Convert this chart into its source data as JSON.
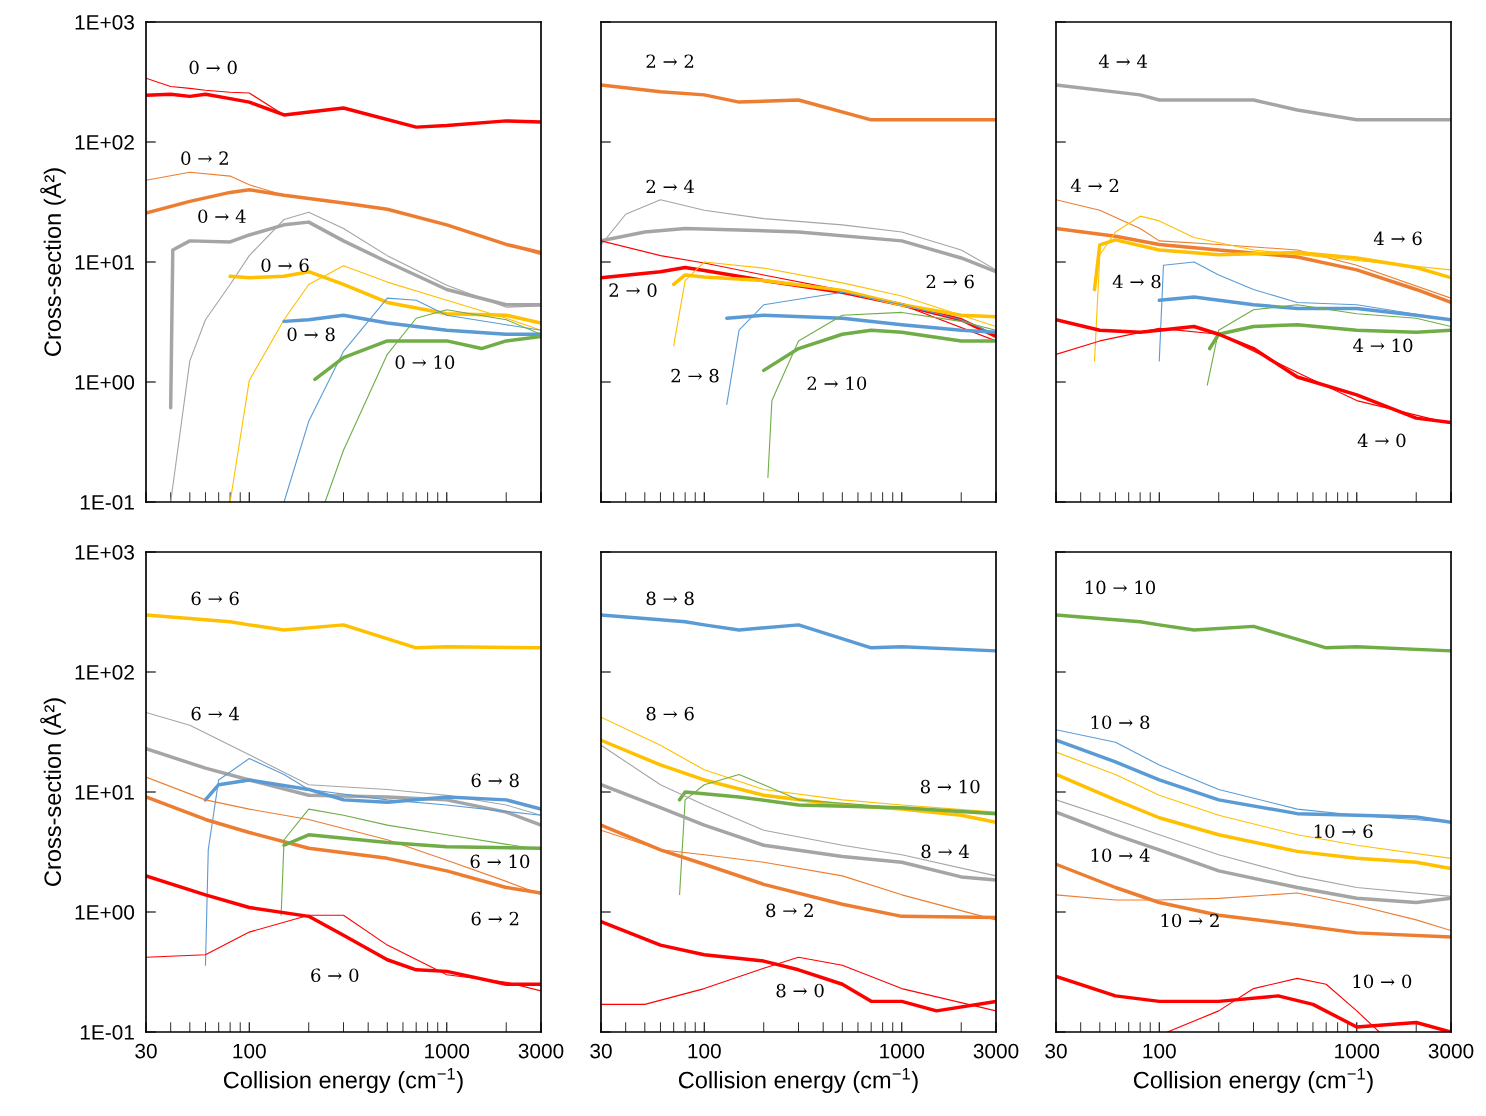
{
  "chart_data": [
    {
      "type": "line",
      "log": "xy",
      "ylabel": "Cross-section (Å²)",
      "tick_labels": "y",
      "xlim": [
        30,
        3000
      ],
      "ylim": [
        0.1,
        1000
      ],
      "xticks": [
        30,
        100,
        1000,
        3000
      ],
      "yticks": [
        {
          "value": 0.1,
          "label": "1E-01"
        },
        {
          "value": 1,
          "label": "1E+00"
        },
        {
          "value": 10,
          "label": "1E+01"
        },
        {
          "value": 100,
          "label": "1E+02"
        },
        {
          "value": 1000,
          "label": "1E+03"
        }
      ],
      "series": [
        {
          "color": "#ff0000",
          "x": [
            30,
            40,
            50,
            60,
            80,
            100,
            150,
            300,
            700,
            1000,
            2000,
            3000
          ],
          "values": [
            245,
            250,
            240,
            250,
            230,
            215,
            168,
            192,
            133,
            137,
            150,
            147
          ]
        },
        {
          "color": "#ff0000",
          "x": [
            30,
            40,
            50,
            60,
            80,
            100,
            150,
            300,
            700,
            1000,
            2000,
            3000
          ],
          "values": [
            340,
            290,
            280,
            270,
            260,
            256,
            168,
            192,
            133,
            137,
            150,
            147
          ]
        },
        {
          "color": "#ed7d31",
          "x": [
            30,
            50,
            80,
            100,
            150,
            300,
            500,
            1000,
            2000,
            3000
          ],
          "values": [
            25.6,
            32,
            38,
            40,
            36,
            31,
            27.5,
            20.4,
            14,
            12
          ]
        },
        {
          "color": "#ed7d31",
          "x": [
            30,
            50,
            80,
            100,
            150,
            300,
            500,
            1000,
            2000,
            3000
          ],
          "values": [
            48,
            56,
            52,
            44,
            36,
            31,
            27.5,
            20.4,
            14,
            11.5
          ]
        },
        {
          "color": "#a5a5a5",
          "x": [
            40,
            41,
            50,
            80,
            100,
            150,
            200,
            300,
            500,
            1000,
            2000,
            3000
          ],
          "values": [
            0.61,
            12.6,
            15,
            14.7,
            16.8,
            20.4,
            21.5,
            15,
            10,
            5.9,
            4.4,
            4.4
          ]
        },
        {
          "color": "#a5a5a5",
          "x": [
            40,
            50,
            60,
            80,
            100,
            150,
            200,
            300,
            500,
            1000,
            2000,
            3000
          ],
          "values": [
            0.1,
            1.5,
            3.3,
            6.5,
            11.3,
            22.6,
            26,
            19,
            11.3,
            6.4,
            4.2,
            4.3
          ]
        },
        {
          "color": "#ffc000",
          "x": [
            80,
            100,
            150,
            200,
            300,
            500,
            1000,
            2000,
            3000
          ],
          "values": [
            7.6,
            7.4,
            7.6,
            8.3,
            6.5,
            4.6,
            3.7,
            3.6,
            3.1
          ]
        },
        {
          "color": "#ffc000",
          "x": [
            80,
            100,
            150,
            200,
            300,
            500,
            1000,
            2000,
            3000
          ],
          "values": [
            0.1,
            1.03,
            3.3,
            6.5,
            9.3,
            6.8,
            4.8,
            3.4,
            2.7
          ]
        },
        {
          "color": "#5b9bd5",
          "x": [
            150,
            200,
            300,
            500,
            1000,
            2000,
            3000
          ],
          "values": [
            3.2,
            3.3,
            3.6,
            3.1,
            2.7,
            2.5,
            2.5
          ]
        },
        {
          "color": "#5b9bd5",
          "x": [
            150,
            200,
            300,
            500,
            700,
            1000,
            2000,
            3000
          ],
          "values": [
            0.1,
            0.47,
            1.8,
            5.0,
            4.8,
            3.6,
            3.0,
            2.7
          ]
        },
        {
          "color": "#70ad47",
          "x": [
            215,
            300,
            500,
            1000,
            1500,
            2000,
            3000
          ],
          "values": [
            1.05,
            1.6,
            2.2,
            2.2,
            1.9,
            2.2,
            2.4
          ]
        },
        {
          "color": "#70ad47",
          "x": [
            242,
            300,
            500,
            700,
            1000,
            2000,
            3000
          ],
          "values": [
            0.1,
            0.27,
            1.7,
            3.4,
            4.0,
            3.3,
            2.5
          ]
        }
      ],
      "annotations": [
        "0 → 0",
        "0 → 2",
        "0 → 4",
        "0 → 6",
        "0 → 8",
        "0 → 10"
      ]
    },
    {
      "type": "line",
      "log": "xy",
      "tick_labels": false,
      "xlim": [
        30,
        3000
      ],
      "ylim": [
        0.1,
        1000
      ],
      "xticks": [
        30,
        100,
        1000,
        3000
      ],
      "yticks": [
        {
          "value": 0.1,
          "label": null
        },
        {
          "value": 1,
          "label": null
        },
        {
          "value": 10,
          "label": null
        },
        {
          "value": 100,
          "label": null
        },
        {
          "value": 1000,
          "label": null
        }
      ],
      "series": [
        {
          "color": "#ed7d31",
          "x": [
            30,
            60,
            100,
            150,
            300,
            700,
            1000,
            3000
          ],
          "values": [
            299,
            262,
            247,
            215,
            224,
            153,
            153,
            153
          ]
        },
        {
          "color": "#a5a5a5",
          "x": [
            30,
            40,
            60,
            100,
            200,
            500,
            1000,
            2000,
            3000
          ],
          "values": [
            13.9,
            25,
            33,
            27,
            23,
            20.4,
            17.8,
            12.6,
            8.6
          ]
        },
        {
          "color": "#a5a5a5",
          "x": [
            30,
            50,
            80,
            150,
            300,
            1000,
            2000,
            3000
          ],
          "values": [
            15,
            17.8,
            19,
            18.5,
            17.8,
            15,
            10.8,
            8.3
          ]
        },
        {
          "color": "#ff0000",
          "x": [
            30,
            60,
            100,
            200,
            500,
            1000,
            3000
          ],
          "values": [
            15,
            11.3,
            9.8,
            7.8,
            5.8,
            4.4,
            2.2
          ]
        },
        {
          "color": "#ff0000",
          "x": [
            30,
            60,
            80,
            100,
            200,
            500,
            1000,
            2000,
            3000
          ],
          "values": [
            7.4,
            8.3,
            9.0,
            8.5,
            7,
            5.6,
            4.4,
            3.3,
            2.4
          ]
        },
        {
          "color": "#ffc000",
          "x": [
            70,
            80,
            100,
            200,
            500,
            1000,
            2000,
            3000
          ],
          "values": [
            2.0,
            7.0,
            10,
            8.9,
            6.7,
            5.2,
            3.6,
            2.9
          ]
        },
        {
          "color": "#ffc000",
          "x": [
            70,
            80,
            100,
            200,
            500,
            1000,
            2000,
            3000
          ],
          "values": [
            6.5,
            7.8,
            7.5,
            7,
            5.8,
            4.4,
            3.6,
            3.5
          ]
        },
        {
          "color": "#5b9bd5",
          "x": [
            130,
            150,
            200,
            500,
            1000,
            2000,
            3000
          ],
          "values": [
            0.65,
            2.7,
            4.4,
            5.6,
            4.4,
            3.3,
            2.5
          ]
        },
        {
          "color": "#5b9bd5",
          "x": [
            130,
            200,
            500,
            1000,
            2000,
            3000
          ],
          "values": [
            3.4,
            3.6,
            3.4,
            3.0,
            2.7,
            2.6
          ]
        },
        {
          "color": "#70ad47",
          "x": [
            210,
            220,
            300,
            500,
            1000,
            2000,
            3000
          ],
          "values": [
            0.16,
            0.7,
            2.2,
            3.6,
            3.8,
            3.2,
            2.7
          ]
        },
        {
          "color": "#70ad47",
          "x": [
            200,
            300,
            500,
            700,
            1000,
            2000,
            3000
          ],
          "values": [
            1.25,
            1.9,
            2.5,
            2.7,
            2.6,
            2.2,
            2.2
          ]
        }
      ],
      "annotations": [
        "2 → 2",
        "2 → 4",
        "2 → 0",
        "2 → 6",
        "2 → 8",
        "2 → 10"
      ]
    },
    {
      "type": "line",
      "log": "xy",
      "tick_labels": false,
      "xlim": [
        30,
        3000
      ],
      "ylim": [
        0.1,
        1000
      ],
      "xticks": [
        30,
        100,
        1000,
        3000
      ],
      "yticks": [
        {
          "value": 0.1,
          "label": null
        },
        {
          "value": 1,
          "label": null
        },
        {
          "value": 10,
          "label": null
        },
        {
          "value": 100,
          "label": null
        },
        {
          "value": 1000,
          "label": null
        }
      ],
      "series": [
        {
          "color": "#a5a5a5",
          "x": [
            30,
            80,
            100,
            150,
            300,
            500,
            1000,
            3000
          ],
          "values": [
            299,
            247,
            224,
            224,
            224,
            185,
            153,
            153
          ]
        },
        {
          "color": "#ed7d31",
          "x": [
            30,
            50,
            80,
            100,
            200,
            500,
            1000,
            3000
          ],
          "values": [
            33,
            27,
            19,
            15,
            14,
            12.6,
            9.4,
            5.0
          ]
        },
        {
          "color": "#ed7d31",
          "x": [
            30,
            60,
            100,
            200,
            500,
            1000,
            2000,
            3000
          ],
          "values": [
            19,
            16.4,
            14,
            12.6,
            11,
            8.6,
            5.9,
            4.6
          ]
        },
        {
          "color": "#ffc000",
          "x": [
            47,
            50,
            60,
            80,
            100,
            150,
            300,
            1000,
            3000
          ],
          "values": [
            1.5,
            11.5,
            17.8,
            24.1,
            22,
            16,
            12.6,
            10.3,
            8.6
          ]
        },
        {
          "color": "#ffc000",
          "x": [
            47,
            50,
            60,
            100,
            200,
            500,
            1000,
            2000,
            3000
          ],
          "values": [
            5.9,
            13.9,
            15.3,
            12.6,
            11.5,
            12,
            10.8,
            9,
            7.4
          ]
        },
        {
          "color": "#5b9bd5",
          "x": [
            100,
            105,
            150,
            200,
            300,
            500,
            1000,
            3000
          ],
          "values": [
            1.5,
            9.4,
            10,
            7.8,
            5.9,
            4.6,
            4.4,
            3.3
          ]
        },
        {
          "color": "#5b9bd5",
          "x": [
            100,
            150,
            300,
            500,
            1000,
            2000,
            3000
          ],
          "values": [
            4.8,
            5.1,
            4.4,
            4.1,
            4.1,
            3.6,
            3.3
          ]
        },
        {
          "color": "#70ad47",
          "x": [
            175,
            200,
            300,
            500,
            1000,
            2000,
            3000
          ],
          "values": [
            0.94,
            2.7,
            4.0,
            4.4,
            3.7,
            3.4,
            2.9
          ]
        },
        {
          "color": "#70ad47",
          "x": [
            180,
            200,
            300,
            500,
            1000,
            2000,
            3000
          ],
          "values": [
            1.9,
            2.5,
            2.9,
            3.0,
            2.7,
            2.6,
            2.7
          ]
        },
        {
          "color": "#ff0000",
          "x": [
            30,
            50,
            100,
            200,
            500,
            1000,
            3000
          ],
          "values": [
            1.7,
            2.2,
            2.8,
            2.5,
            1.2,
            0.7,
            0.45
          ]
        },
        {
          "color": "#ff0000",
          "x": [
            30,
            50,
            80,
            100,
            150,
            200,
            300,
            500,
            1000,
            2000,
            3000
          ],
          "values": [
            3.3,
            2.7,
            2.6,
            2.7,
            2.9,
            2.5,
            1.9,
            1.1,
            0.78,
            0.5,
            0.46
          ]
        }
      ],
      "annotations": [
        "4 → 4",
        "4 → 2",
        "4 → 6",
        "4 → 8",
        "4 → 10",
        "4 → 0"
      ]
    },
    {
      "type": "line",
      "log": "xy",
      "ylabel": "Cross-section (Å²)",
      "xlabel": "Collision energy (cm$^{−1}$)",
      "xlim": [
        30,
        3000
      ],
      "ylim": [
        0.1,
        1000
      ],
      "xticks": [
        30,
        100,
        1000,
        3000
      ],
      "yticks": [
        {
          "value": 0.1,
          "label": "1E-01"
        },
        {
          "value": 1,
          "label": "1E+00"
        },
        {
          "value": 10,
          "label": "1E+01"
        },
        {
          "value": 100,
          "label": "1E+02"
        },
        {
          "value": 1000,
          "label": "1E+03"
        }
      ],
      "series": [
        {
          "color": "#ffc000",
          "x": [
            30,
            80,
            100,
            150,
            300,
            700,
            1000,
            3000
          ],
          "values": [
            299,
            262,
            247,
            224,
            247,
            159,
            162,
            159
          ]
        },
        {
          "color": "#a5a5a5",
          "x": [
            30,
            50,
            100,
            200,
            500,
            1000,
            2000,
            3000
          ],
          "values": [
            46,
            36,
            20.4,
            11.5,
            10.5,
            9.4,
            7.8,
            6.4
          ]
        },
        {
          "color": "#a5a5a5",
          "x": [
            30,
            60,
            100,
            200,
            500,
            1000,
            2000,
            3000
          ],
          "values": [
            23,
            15.8,
            12.6,
            9.4,
            9.1,
            8.6,
            6.8,
            5.3
          ]
        },
        {
          "color": "#5b9bd5",
          "x": [
            60,
            62,
            70,
            100,
            150,
            200,
            500,
            1000,
            3000
          ],
          "values": [
            0.36,
            3.3,
            12.6,
            19,
            14,
            10.5,
            8.6,
            7.8,
            6.4
          ]
        },
        {
          "color": "#5b9bd5",
          "x": [
            60,
            70,
            100,
            200,
            300,
            500,
            1000,
            2000,
            3000
          ],
          "values": [
            8.6,
            11.5,
            12.6,
            10.5,
            8.6,
            8.2,
            9.1,
            8.6,
            7.2
          ]
        },
        {
          "color": "#ed7d31",
          "x": [
            30,
            60,
            100,
            200,
            500,
            1000,
            2000,
            3000
          ],
          "values": [
            13.3,
            8.6,
            7.2,
            5.9,
            4.0,
            2.7,
            1.8,
            1.4
          ]
        },
        {
          "color": "#ed7d31",
          "x": [
            30,
            60,
            100,
            200,
            500,
            1000,
            2000,
            3000
          ],
          "values": [
            9.1,
            5.9,
            4.6,
            3.4,
            2.8,
            2.2,
            1.6,
            1.44
          ]
        },
        {
          "color": "#70ad47",
          "x": [
            145,
            150,
            200,
            300,
            500,
            1000,
            3000
          ],
          "values": [
            0.94,
            4,
            7.2,
            6.4,
            5.3,
            4.4,
            3.3
          ]
        },
        {
          "color": "#70ad47",
          "x": [
            150,
            200,
            500,
            1000,
            3000
          ],
          "values": [
            3.6,
            4.4,
            3.8,
            3.5,
            3.4
          ]
        },
        {
          "color": "#ff0000",
          "x": [
            30,
            60,
            100,
            200,
            300,
            500,
            1000,
            2000,
            3000
          ],
          "values": [
            0.42,
            0.44,
            0.68,
            0.94,
            0.94,
            0.53,
            0.3,
            0.26,
            0.22
          ]
        },
        {
          "color": "#ff0000",
          "x": [
            30,
            60,
            100,
            200,
            300,
            500,
            700,
            1000,
            2000,
            3000
          ],
          "values": [
            2.0,
            1.39,
            1.09,
            0.92,
            0.64,
            0.4,
            0.33,
            0.32,
            0.25,
            0.25
          ]
        }
      ],
      "annotations": [
        "6 → 6",
        "6 → 4",
        "6 → 8",
        "6 → 10",
        "6 → 2",
        "6 → 0"
      ]
    },
    {
      "type": "line",
      "log": "xy",
      "xlabel": "Collision energy (cm$^{−1}$)",
      "tick_labels": "x",
      "xlim": [
        30,
        3000
      ],
      "ylim": [
        0.1,
        1000
      ],
      "xticks": [
        30,
        100,
        1000,
        3000
      ],
      "yticks": [
        {
          "value": 0.1,
          "label": null
        },
        {
          "value": 1,
          "label": null
        },
        {
          "value": 10,
          "label": null
        },
        {
          "value": 100,
          "label": null
        },
        {
          "value": 1000,
          "label": null
        }
      ],
      "series": [
        {
          "color": "#5b9bd5",
          "x": [
            30,
            80,
            100,
            150,
            300,
            700,
            1000,
            3000
          ],
          "values": [
            299,
            262,
            247,
            224,
            247,
            159,
            162,
            150
          ]
        },
        {
          "color": "#ffc000",
          "x": [
            30,
            60,
            100,
            200,
            500,
            1000,
            3000
          ],
          "values": [
            42,
            24.5,
            15.3,
            10.5,
            8.6,
            7.8,
            6.8
          ]
        },
        {
          "color": "#ffc000",
          "x": [
            30,
            60,
            100,
            200,
            500,
            1000,
            2000,
            3000
          ],
          "values": [
            27,
            16.8,
            12.6,
            9.4,
            7.8,
            7.2,
            6.4,
            5.6
          ]
        },
        {
          "color": "#70ad47",
          "x": [
            75,
            80,
            100,
            150,
            200,
            300,
            1000,
            3000
          ],
          "values": [
            1.4,
            8.6,
            11.5,
            14,
            11.5,
            8.6,
            7.4,
            6.6
          ]
        },
        {
          "color": "#70ad47",
          "x": [
            75,
            80,
            150,
            300,
            1000,
            3000
          ],
          "values": [
            8.6,
            10,
            9.1,
            7.8,
            7.4,
            6.6
          ]
        },
        {
          "color": "#a5a5a5",
          "x": [
            30,
            60,
            100,
            200,
            500,
            1000,
            3000
          ],
          "values": [
            24.5,
            11.5,
            7.8,
            4.8,
            3.6,
            3.0,
            2.0
          ]
        },
        {
          "color": "#a5a5a5",
          "x": [
            30,
            60,
            100,
            200,
            500,
            1000,
            2000,
            3000
          ],
          "values": [
            11.5,
            7.4,
            5.3,
            3.6,
            2.9,
            2.6,
            1.96,
            1.85
          ]
        },
        {
          "color": "#ed7d31",
          "x": [
            30,
            60,
            100,
            200,
            500,
            1000,
            3000
          ],
          "values": [
            4.8,
            3.3,
            3.0,
            2.6,
            2.0,
            1.39,
            0.86
          ]
        },
        {
          "color": "#ed7d31",
          "x": [
            30,
            60,
            100,
            200,
            500,
            1000,
            3000
          ],
          "values": [
            5.3,
            3.3,
            2.5,
            1.7,
            1.16,
            0.92,
            0.9
          ]
        },
        {
          "color": "#ff0000",
          "x": [
            30,
            50,
            100,
            200,
            300,
            500,
            1000,
            3000
          ],
          "values": [
            0.17,
            0.17,
            0.23,
            0.34,
            0.42,
            0.36,
            0.23,
            0.15
          ]
        },
        {
          "color": "#ff0000",
          "x": [
            30,
            60,
            100,
            200,
            300,
            500,
            700,
            1000,
            1500,
            3000
          ],
          "values": [
            0.83,
            0.53,
            0.44,
            0.39,
            0.33,
            0.25,
            0.18,
            0.18,
            0.15,
            0.18
          ]
        }
      ],
      "annotations": [
        "8 → 8",
        "8 → 6",
        "8 → 10",
        "8 → 4",
        "8 → 2",
        "8 → 0"
      ]
    },
    {
      "type": "line",
      "log": "xy",
      "xlabel": "Collision energy (cm$^{−1}$)",
      "tick_labels": "x",
      "xlim": [
        30,
        3000
      ],
      "ylim": [
        0.1,
        1000
      ],
      "xticks": [
        30,
        100,
        1000,
        3000
      ],
      "yticks": [
        {
          "value": 0.1,
          "label": null
        },
        {
          "value": 1,
          "label": null
        },
        {
          "value": 10,
          "label": null
        },
        {
          "value": 100,
          "label": null
        },
        {
          "value": 1000,
          "label": null
        }
      ],
      "series": [
        {
          "color": "#70ad47",
          "x": [
            30,
            80,
            100,
            150,
            300,
            700,
            1000,
            3000
          ],
          "values": [
            299,
            262,
            247,
            224,
            240,
            159,
            162,
            150
          ]
        },
        {
          "color": "#5b9bd5",
          "x": [
            30,
            60,
            100,
            200,
            500,
            1000,
            3000
          ],
          "values": [
            33,
            26,
            16.8,
            10.5,
            7.2,
            6.4,
            5.6
          ]
        },
        {
          "color": "#5b9bd5",
          "x": [
            30,
            60,
            100,
            200,
            500,
            1000,
            2000,
            3000
          ],
          "values": [
            27,
            17.8,
            12.6,
            8.6,
            6.6,
            6.4,
            6.2,
            5.6
          ]
        },
        {
          "color": "#ffc000",
          "x": [
            30,
            60,
            100,
            200,
            500,
            1000,
            3000
          ],
          "values": [
            21.5,
            14,
            9.4,
            6.4,
            4.4,
            3.6,
            2.8
          ]
        },
        {
          "color": "#ffc000",
          "x": [
            30,
            60,
            100,
            200,
            500,
            1000,
            2000,
            3000
          ],
          "values": [
            14,
            8.6,
            6.1,
            4.4,
            3.2,
            2.8,
            2.6,
            2.3
          ]
        },
        {
          "color": "#a5a5a5",
          "x": [
            30,
            60,
            100,
            200,
            500,
            1000,
            3000
          ],
          "values": [
            8.6,
            5.9,
            4.4,
            3.0,
            2.0,
            1.6,
            1.35
          ]
        },
        {
          "color": "#a5a5a5",
          "x": [
            30,
            60,
            100,
            200,
            500,
            1000,
            2000,
            3000
          ],
          "values": [
            6.8,
            4.4,
            3.3,
            2.2,
            1.6,
            1.3,
            1.2,
            1.3
          ]
        },
        {
          "color": "#ed7d31",
          "x": [
            30,
            60,
            100,
            200,
            500,
            1000,
            2000,
            3000
          ],
          "values": [
            1.39,
            1.26,
            1.26,
            1.3,
            1.44,
            1.14,
            0.86,
            0.7
          ]
        },
        {
          "color": "#ed7d31",
          "x": [
            30,
            60,
            100,
            200,
            500,
            1000,
            3000
          ],
          "values": [
            2.5,
            1.6,
            1.2,
            0.94,
            0.78,
            0.67,
            0.62
          ]
        },
        {
          "color": "#ff0000",
          "x": [
            110,
            200,
            300,
            500,
            700,
            1000,
            1300
          ],
          "values": [
            0.1,
            0.15,
            0.23,
            0.28,
            0.25,
            0.15,
            0.1
          ]
        },
        {
          "color": "#ff0000",
          "x": [
            30,
            60,
            100,
            200,
            400,
            600,
            1000,
            2000,
            3000
          ],
          "values": [
            0.29,
            0.2,
            0.18,
            0.18,
            0.2,
            0.17,
            0.11,
            0.12,
            0.1
          ]
        }
      ],
      "annotations": [
        "10 → 10",
        "10 → 8",
        "10 → 6",
        "10 → 4",
        "10 → 2",
        "10 → 0"
      ]
    }
  ]
}
